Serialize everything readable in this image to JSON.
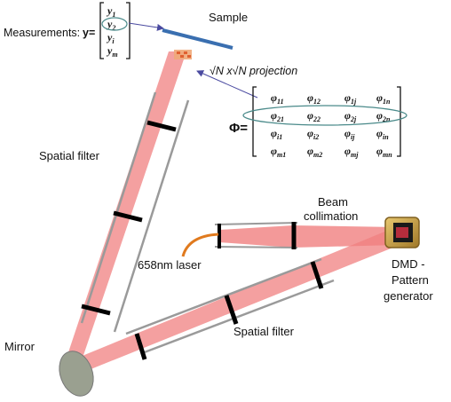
{
  "labels": {
    "measurements": "Measurements:",
    "y_eq": "y=",
    "sample": "Sample",
    "projection": "√N x√N projection",
    "phi_eq": "Φ=",
    "spatial_filter_1": "Spatial filter",
    "spatial_filter_2": "Spatial filter",
    "beam": "Beam",
    "collimation": "collimation",
    "laser": "658nm laser",
    "dmd_1": "DMD -",
    "dmd_2": "Pattern",
    "dmd_3": "generator",
    "mirror": "Mirror"
  },
  "y_vector": [
    "y1",
    "y2",
    "yi",
    "ym"
  ],
  "phi_matrix": [
    [
      "φ11",
      "φ12",
      "φ1j",
      "φ1n"
    ],
    [
      "φ21",
      "φ22",
      "φ2j",
      "φ2n"
    ],
    [
      "φi1",
      "φi2",
      "φij",
      "φin"
    ],
    [
      "φm1",
      "φm2",
      "φmj",
      "φmn"
    ]
  ],
  "colors": {
    "beam": "#f08080",
    "filter_tube": "#9a9a9a",
    "lens": "#000000",
    "sample": "#3a6fb0",
    "highlight": "#4a8a8a",
    "arrow": "#4a4aa0",
    "fiber": "#e07a1e",
    "mirror": "#9aa090",
    "dmd_frame": "#c8a048"
  }
}
